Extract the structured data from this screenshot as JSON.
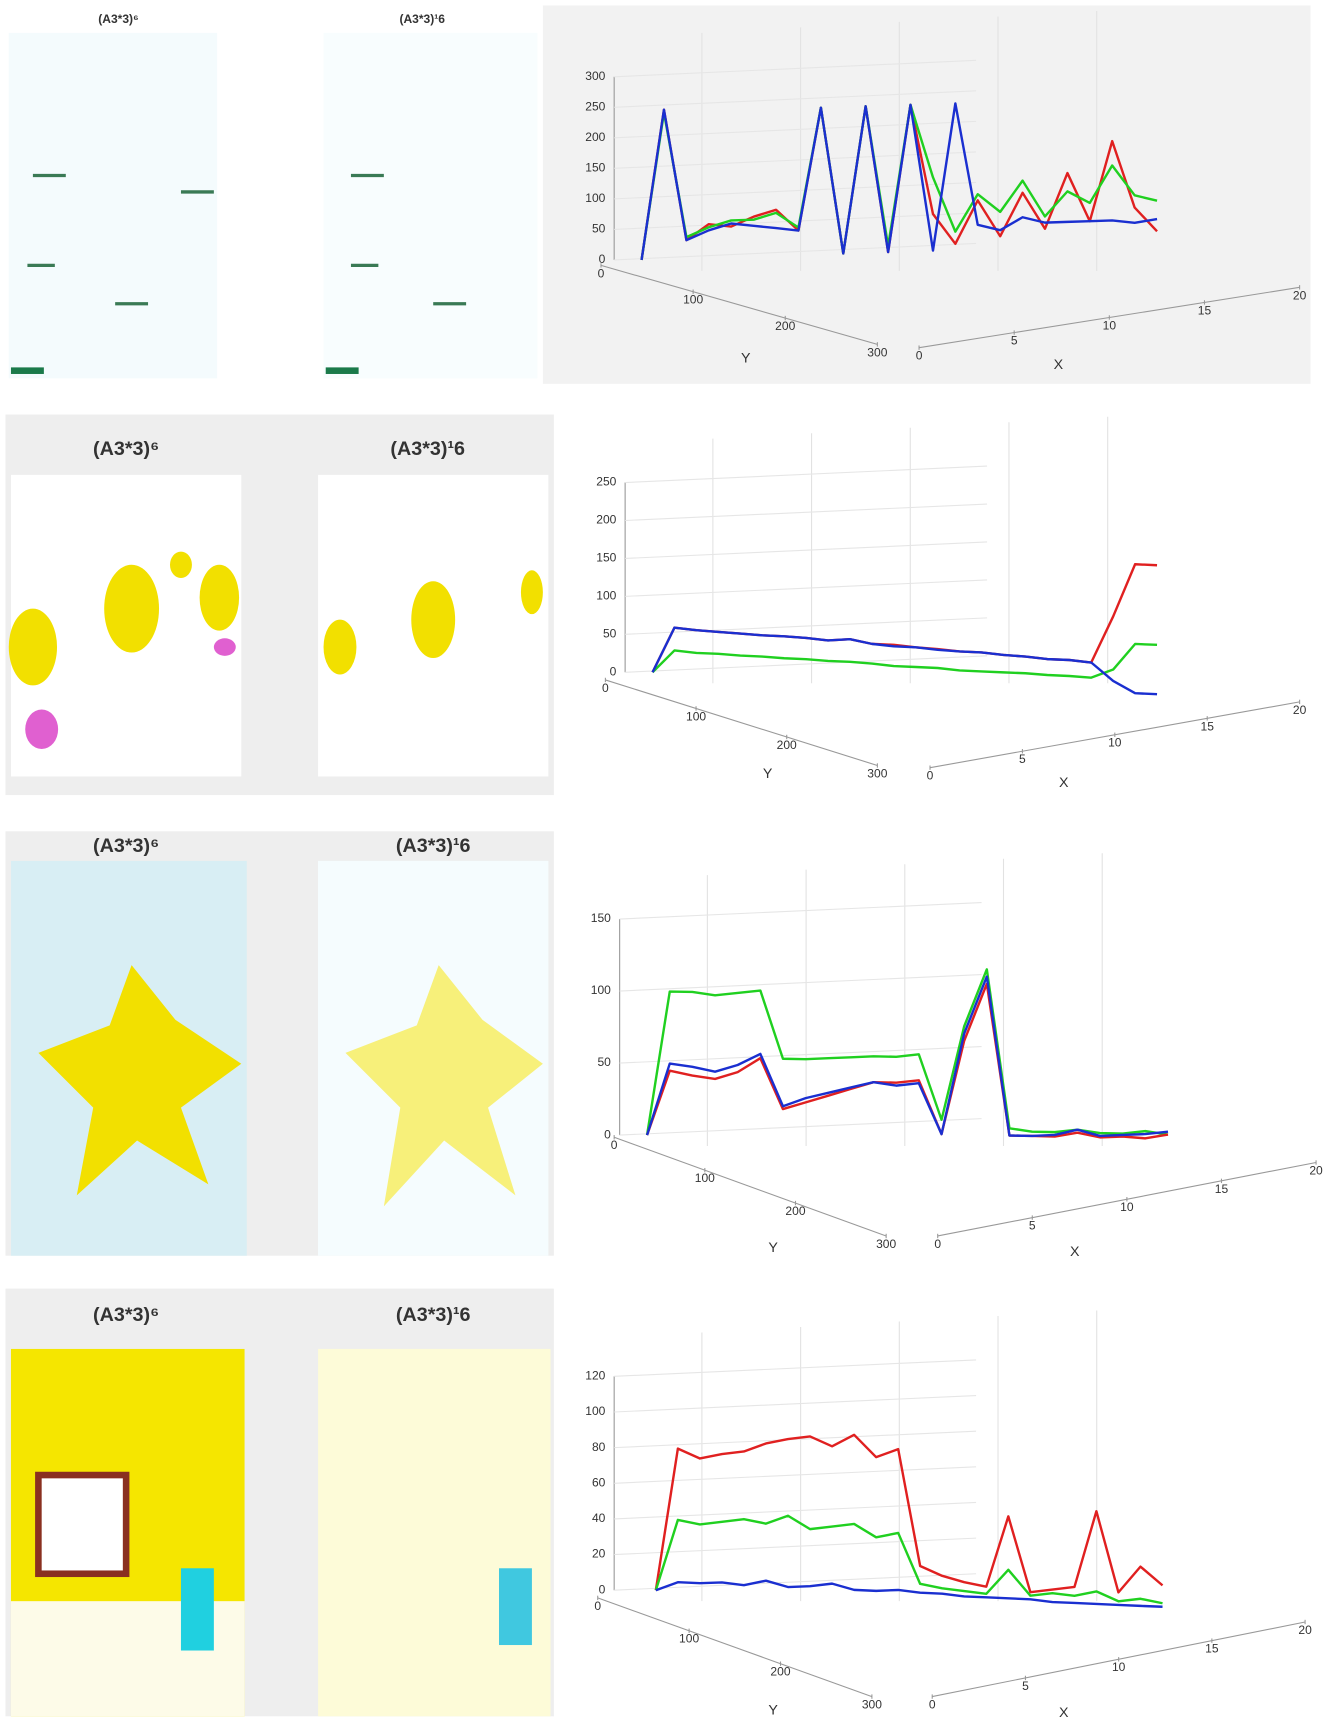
{
  "chart_data": [
    {
      "type": "line3d",
      "panel_titles": [
        "(A3*3)⁶",
        "(A3*3)¹6"
      ],
      "xlabel": "X",
      "ylabel": "Y",
      "zlim": [
        0,
        300
      ],
      "zticks": [
        0,
        50,
        100,
        150,
        200,
        250,
        300
      ],
      "ylim": [
        0,
        300
      ],
      "yticks": [
        0,
        100,
        200,
        300
      ],
      "xlim": [
        0,
        20
      ],
      "xticks": [
        0,
        5,
        10,
        15,
        20
      ],
      "series": [
        {
          "color": "#e02020",
          "values": [
            0,
            245,
            30,
            55,
            50,
            65,
            75,
            40,
            240,
            0,
            240,
            0,
            240,
            60,
            10,
            80,
            20,
            90,
            30,
            120,
            40,
            170,
            60,
            20
          ]
        },
        {
          "color": "#20d020",
          "values": [
            0,
            240,
            35,
            50,
            60,
            60,
            70,
            45,
            240,
            0,
            240,
            10,
            240,
            120,
            30,
            90,
            60,
            110,
            50,
            90,
            70,
            130,
            80,
            70
          ]
        },
        {
          "color": "#1a2fd0",
          "values": [
            0,
            245,
            30,
            45,
            55,
            50,
            45,
            40,
            240,
            0,
            240,
            0,
            240,
            0,
            240,
            40,
            30,
            50,
            40,
            40,
            40,
            40,
            35,
            40
          ]
        }
      ]
    },
    {
      "type": "line3d",
      "panel_titles": [
        "(A3*3)⁶",
        "(A3*3)¹6"
      ],
      "xlabel": "X",
      "ylabel": "Y",
      "zlim": [
        0,
        250
      ],
      "zticks": [
        0,
        50,
        100,
        150,
        200,
        250
      ],
      "ylim": [
        0,
        300
      ],
      "yticks": [
        0,
        100,
        200,
        300
      ],
      "xlim": [
        0,
        20
      ],
      "xticks": [
        0,
        5,
        10,
        15,
        20
      ],
      "series": [
        {
          "color": "#e02020",
          "values": [
            0,
            60,
            58,
            57,
            56,
            55,
            55,
            54,
            52,
            55,
            50,
            50,
            48,
            47,
            45,
            45,
            43,
            42,
            40,
            40,
            38,
            100,
            170,
            170
          ]
        },
        {
          "color": "#20d020",
          "values": [
            0,
            30,
            28,
            28,
            27,
            27,
            26,
            26,
            25,
            25,
            24,
            22,
            22,
            22,
            20,
            20,
            20,
            20,
            19,
            19,
            18,
            30,
            65,
            65
          ]
        },
        {
          "color": "#1a2fd0",
          "values": [
            0,
            60,
            58,
            57,
            56,
            55,
            55,
            54,
            52,
            55,
            50,
            48,
            48,
            46,
            45,
            45,
            43,
            42,
            40,
            40,
            38,
            15,
            0,
            0
          ]
        }
      ]
    },
    {
      "type": "line3d",
      "panel_titles": [
        "(A3*3)⁶",
        "(A3*3)¹6"
      ],
      "xlabel": "X",
      "ylabel": "Y",
      "zlim": [
        0,
        150
      ],
      "zticks": [
        0,
        50,
        100,
        150
      ],
      "ylim": [
        0,
        300
      ],
      "yticks": [
        0,
        100,
        200,
        300
      ],
      "xlim": [
        0,
        20
      ],
      "xticks": [
        0,
        5,
        10,
        15,
        20
      ],
      "series": [
        {
          "color": "#20d020",
          "values": [
            0,
            100,
            100,
            98,
            100,
            102,
            55,
            55,
            56,
            57,
            58,
            58,
            60,
            15,
            80,
            120,
            10,
            8,
            8,
            10,
            8,
            8,
            10,
            8
          ]
        },
        {
          "color": "#e02020",
          "values": [
            0,
            45,
            42,
            40,
            45,
            55,
            20,
            25,
            30,
            35,
            40,
            40,
            42,
            5,
            70,
            110,
            5,
            5,
            5,
            8,
            5,
            6,
            5,
            8
          ]
        },
        {
          "color": "#1a2fd0",
          "values": [
            0,
            50,
            48,
            45,
            50,
            58,
            22,
            28,
            32,
            36,
            40,
            38,
            40,
            5,
            75,
            115,
            5,
            5,
            6,
            10,
            6,
            7,
            8,
            10
          ]
        }
      ]
    },
    {
      "type": "line3d",
      "panel_titles": [
        "(A3*3)⁶",
        "(A3*3)¹6"
      ],
      "xlabel": "X",
      "ylabel": "Y",
      "zlim": [
        0,
        120
      ],
      "zticks": [
        0,
        20,
        40,
        60,
        80,
        100,
        120
      ],
      "ylim": [
        0,
        300
      ],
      "yticks": [
        0,
        100,
        200,
        300
      ],
      "xlim": [
        0,
        20
      ],
      "xticks": [
        0,
        5,
        10,
        15,
        20
      ],
      "series": [
        {
          "color": "#e02020",
          "values": [
            0,
            80,
            75,
            78,
            80,
            85,
            88,
            90,
            85,
            92,
            80,
            85,
            20,
            15,
            12,
            10,
            50,
            8,
            10,
            12,
            55,
            10,
            25,
            15
          ]
        },
        {
          "color": "#20d020",
          "values": [
            0,
            40,
            38,
            40,
            42,
            40,
            45,
            38,
            40,
            42,
            35,
            38,
            10,
            8,
            7,
            6,
            20,
            6,
            8,
            7,
            10,
            5,
            7,
            5
          ]
        },
        {
          "color": "#1a2fd0",
          "values": [
            0,
            5,
            5,
            6,
            5,
            8,
            5,
            6,
            8,
            5,
            5,
            6,
            5,
            5,
            4,
            4,
            4,
            4,
            3,
            3,
            3,
            3,
            3,
            3
          ]
        }
      ]
    }
  ]
}
